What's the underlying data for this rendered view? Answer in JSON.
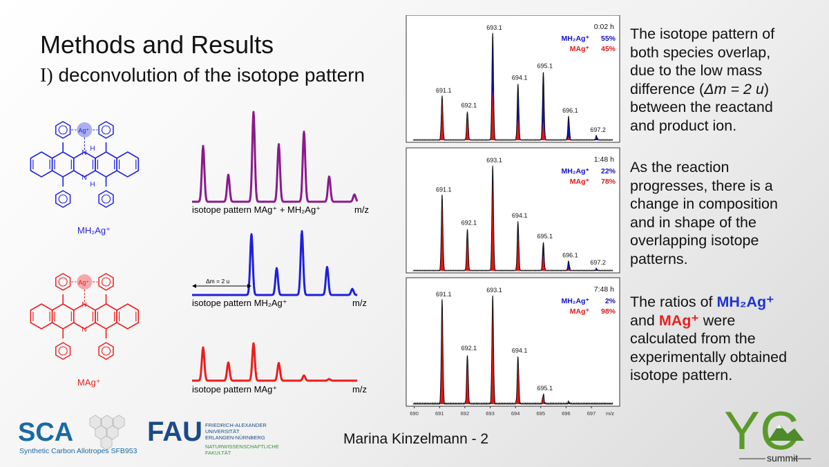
{
  "slide": {
    "title": "Methods and Results",
    "subtitle_prefix": "I)",
    "subtitle": "deconvolution of the isotope pattern",
    "footer": "Marina Kinzelmann - 2"
  },
  "molecules": {
    "top": {
      "ion_label": "MH₂Ag⁺",
      "ag_label": "Ag⁺",
      "h_label": "H",
      "n_label": "N",
      "color": "#1f1fe0"
    },
    "bottom": {
      "ion_label": "MAg⁺",
      "ag_label": "Ag⁺",
      "n_label": "N",
      "color": "#ee1c1c"
    }
  },
  "schematic": {
    "colors": {
      "combined": "#8b1a8b",
      "mh2ag": "#1f1fe0",
      "mag": "#ee1c1c"
    },
    "combined_label": "isotope pattern MAg⁺ + MH₂Ag⁺",
    "mh2ag_label": "isotope pattern MH₂Ag⁺",
    "mag_label": "isotope pattern MAg⁺",
    "axis_label": "m/z",
    "delta_label": "Δm = 2 u",
    "combined_peaks": [
      0.62,
      0.3,
      1.0,
      0.64,
      0.78,
      0.28,
      0.08
    ],
    "mh2ag_peaks": [
      1.0,
      0.44,
      1.05,
      0.46,
      0.1
    ],
    "mag_peaks": [
      0.64,
      0.35,
      0.72,
      0.34,
      0.1,
      0.03
    ]
  },
  "chart_data": [
    {
      "type": "area",
      "time_label": "0:02 h",
      "series": [
        {
          "name": "MH₂Ag⁺",
          "percent": "55%",
          "color": "#1010c8"
        },
        {
          "name": "MAg⁺",
          "percent": "45%",
          "color": "#e61414"
        }
      ],
      "peak_labels": [
        "691.1",
        "692.1",
        "693.1",
        "694.1",
        "695.1",
        "696.1",
        "697.2"
      ],
      "peaks": [
        {
          "x": 691.1,
          "total": 0.41,
          "red": 0.41
        },
        {
          "x": 692.1,
          "total": 0.27,
          "red": 0.27
        },
        {
          "x": 693.1,
          "total": 1.0,
          "red": 0.46
        },
        {
          "x": 694.1,
          "total": 0.53,
          "red": 0.2
        },
        {
          "x": 695.1,
          "total": 0.64,
          "red": 0.17
        },
        {
          "x": 696.1,
          "total": 0.22,
          "red": 0.03
        },
        {
          "x": 697.2,
          "total": 0.04,
          "red": 0.0
        }
      ]
    },
    {
      "type": "area",
      "time_label": "1:48 h",
      "series": [
        {
          "name": "MH₂Ag⁺",
          "percent": "22%",
          "color": "#1010c8"
        },
        {
          "name": "MAg⁺",
          "percent": "78%",
          "color": "#e61414"
        }
      ],
      "peak_labels": [
        "691.1",
        "692.1",
        "693.1",
        "694.1",
        "695.1",
        "696.1",
        "697.2"
      ],
      "peaks": [
        {
          "x": 691.1,
          "total": 0.72,
          "red": 0.72
        },
        {
          "x": 692.1,
          "total": 0.4,
          "red": 0.4
        },
        {
          "x": 693.1,
          "total": 1.0,
          "red": 0.84
        },
        {
          "x": 694.1,
          "total": 0.47,
          "red": 0.33
        },
        {
          "x": 695.1,
          "total": 0.27,
          "red": 0.15
        },
        {
          "x": 696.1,
          "total": 0.09,
          "red": 0.02
        },
        {
          "x": 697.2,
          "total": 0.02,
          "red": 0.0
        }
      ]
    },
    {
      "type": "area",
      "time_label": "7:48 h",
      "series": [
        {
          "name": "MH₂Ag⁺",
          "percent": "2%",
          "color": "#1010c8"
        },
        {
          "name": "MAg⁺",
          "percent": "98%",
          "color": "#e61414"
        }
      ],
      "peak_labels": [
        "691.1",
        "692.1",
        "693.1",
        "694.1",
        "695.1"
      ],
      "peaks": [
        {
          "x": 691.1,
          "total": 0.96,
          "red": 0.95
        },
        {
          "x": 692.1,
          "total": 0.46,
          "red": 0.46
        },
        {
          "x": 693.1,
          "total": 1.0,
          "red": 0.99
        },
        {
          "x": 694.1,
          "total": 0.44,
          "red": 0.44
        },
        {
          "x": 695.1,
          "total": 0.09,
          "red": 0.09
        },
        {
          "x": 696.1,
          "total": 0.02,
          "red": 0.02
        }
      ],
      "x_ticks": [
        "690",
        "691",
        "692",
        "693",
        "694",
        "695",
        "696",
        "697"
      ],
      "xlabel": "m/z"
    }
  ],
  "explanation": {
    "para1": [
      "The isotope pattern of",
      "both species overlap,",
      "due to the low mass",
      "difference (",
      "Δm = 2 u",
      ")",
      "between the reactand",
      "and product ion."
    ],
    "para2": [
      "As the reaction",
      "progresses, there is a",
      "change in composition",
      "and in shape of the",
      "overlapping isotope",
      "patterns."
    ],
    "para3": [
      "The ratios of",
      "MH₂Ag⁺",
      "and",
      "MAg⁺",
      "were",
      "calculated from the",
      "experimentally obtained",
      "isotope pattern."
    ]
  },
  "logos": {
    "sca_text": "SCA",
    "sca_subtitle": "Synthetic Carbon Allotropes SFB953",
    "fau_text": "FAU",
    "fau_lines": [
      "FRIEDRICH-ALEXANDER",
      "UNIVERSITÄT",
      "ERLANGEN-NÜRNBERG"
    ],
    "fau_faculty": [
      "NATURWISSENSCHAFTLICHE",
      "FAKULTÄT"
    ],
    "yc_text": "YC",
    "yc_subtitle": "summit"
  }
}
